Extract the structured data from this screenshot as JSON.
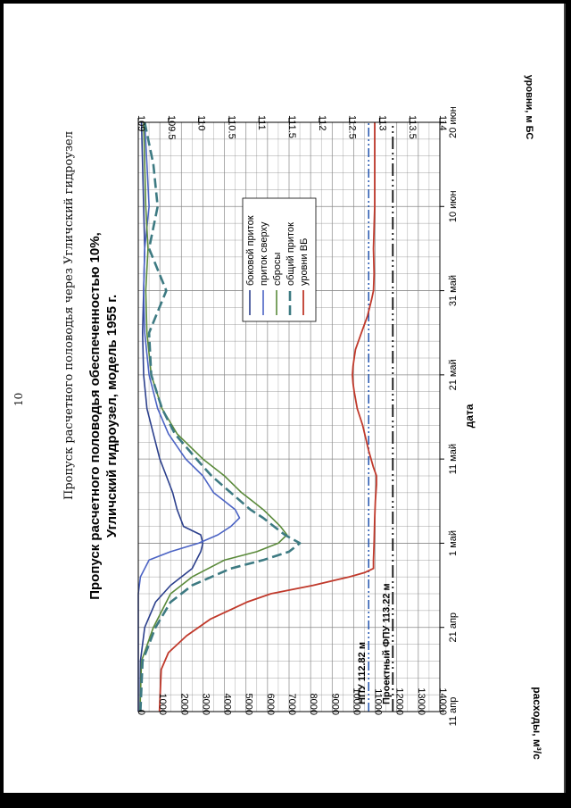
{
  "page": {
    "number": "10",
    "running_title": "Пропуск расчетного половодья через Угличский гидроузел"
  },
  "chart_data": {
    "type": "line",
    "title": "Пропуск расчетного половодья обеспеченностью 10%,",
    "subtitle": "Угличский гидроузел, модель 1955 г.",
    "xlabel": "дата",
    "ylabel": "расходы, м³/с",
    "y2label": "уровни, м БС",
    "x_range": [
      0,
      70
    ],
    "ylim": [
      0,
      14000
    ],
    "y2lim": [
      109,
      114
    ],
    "x_ticks": [
      {
        "day": 0,
        "label": "11 апр"
      },
      {
        "day": 10,
        "label": "21 апр"
      },
      {
        "day": 20,
        "label": "1 май"
      },
      {
        "day": 30,
        "label": "11 май"
      },
      {
        "day": 40,
        "label": "21 май"
      },
      {
        "day": 50,
        "label": "31 май"
      },
      {
        "day": 60,
        "label": "10 июн"
      },
      {
        "day": 70,
        "label": "20 июн"
      }
    ],
    "y_ticks": [
      "0",
      "1000",
      "2000",
      "3000",
      "4000",
      "5000",
      "6000",
      "7000",
      "8000",
      "9000",
      "10000",
      "11000",
      "12000",
      "13000",
      "14000"
    ],
    "y2_ticks": [
      "109",
      "109.5",
      "110",
      "110.5",
      "111",
      "111.5",
      "112",
      "112.5",
      "113",
      "113.5",
      "114"
    ],
    "grid": true,
    "legend_position": "upper-middle",
    "colors": {
      "lateral": "#2b3f8c",
      "upstream": "#4b63c4",
      "release": "#5a8a3a",
      "total": "#3d7a82",
      "level": "#c0392b",
      "fpu": "#111111",
      "npu": "#2456b0"
    },
    "reference_lines": [
      {
        "label": "Проектный ФПУ 113.22 м",
        "level": 113.22
      },
      {
        "label": "НПУ 112.82 м",
        "level": 112.82
      }
    ],
    "series": [
      {
        "name": "боковой приток",
        "axis": "left",
        "x": [
          0,
          6,
          10,
          13,
          15,
          17,
          18,
          19,
          20,
          21,
          22,
          24,
          26,
          28,
          30,
          33,
          36,
          40,
          45,
          50,
          55,
          60,
          65,
          70
        ],
        "y": [
          80,
          100,
          300,
          800,
          1500,
          2500,
          2700,
          2900,
          3000,
          2900,
          2100,
          1800,
          1600,
          1300,
          1000,
          700,
          400,
          250,
          200,
          250,
          300,
          250,
          200,
          150
        ]
      },
      {
        "name": "приток сверху",
        "axis": "left",
        "x": [
          0,
          14,
          16,
          18,
          19,
          20,
          21,
          22,
          23,
          24,
          25,
          26,
          28,
          30,
          33,
          36,
          40,
          45,
          50,
          55,
          60,
          65,
          70
        ],
        "y": [
          0,
          0,
          100,
          500,
          1500,
          2800,
          3700,
          4300,
          4700,
          4500,
          4000,
          3500,
          3000,
          2200,
          1400,
          900,
          500,
          300,
          250,
          300,
          500,
          400,
          300
        ]
      },
      {
        "name": "сбросы",
        "axis": "left",
        "x": [
          0,
          6,
          10,
          14,
          16,
          18,
          19,
          20,
          21,
          22,
          23,
          24,
          25,
          26,
          28,
          30,
          33,
          36,
          40,
          45,
          50,
          55,
          60,
          65,
          70
        ],
        "y": [
          80,
          150,
          700,
          1500,
          2500,
          4000,
          5500,
          6500,
          6900,
          6600,
          6200,
          5800,
          5300,
          4800,
          4000,
          3000,
          1800,
          1100,
          600,
          400,
          350,
          450,
          350,
          300,
          250
        ]
      },
      {
        "name": "общий приток",
        "axis": "left",
        "x": [
          0,
          6,
          10,
          13,
          15,
          17,
          18,
          19,
          20,
          21,
          22,
          23,
          24,
          26,
          28,
          30,
          33,
          36,
          40,
          45,
          50,
          55,
          60,
          65,
          70
        ],
        "y": [
          100,
          200,
          800,
          1500,
          2500,
          4300,
          5800,
          7000,
          7500,
          6800,
          6300,
          5800,
          5200,
          4300,
          3400,
          2700,
          1700,
          1100,
          600,
          500,
          1300,
          500,
          900,
          700,
          300
        ]
      },
      {
        "name": "уровни ВБ",
        "axis": "right",
        "x": [
          0,
          5,
          7,
          9,
          11,
          13,
          14,
          15,
          16,
          16.5,
          17,
          18,
          20,
          23,
          25,
          27,
          28,
          29,
          31,
          34,
          36,
          38,
          39,
          40,
          41,
          42,
          43,
          45,
          47,
          49,
          50,
          52,
          55,
          60,
          65,
          70
        ],
        "y": [
          109.35,
          109.38,
          109.5,
          109.8,
          110.2,
          110.8,
          111.2,
          111.9,
          112.5,
          112.75,
          112.9,
          112.9,
          112.91,
          112.92,
          112.93,
          112.95,
          112.95,
          112.9,
          112.82,
          112.72,
          112.63,
          112.58,
          112.56,
          112.55,
          112.56,
          112.58,
          112.6,
          112.7,
          112.8,
          112.87,
          112.9,
          112.91,
          112.9,
          112.92,
          112.92,
          112.92
        ]
      }
    ]
  }
}
